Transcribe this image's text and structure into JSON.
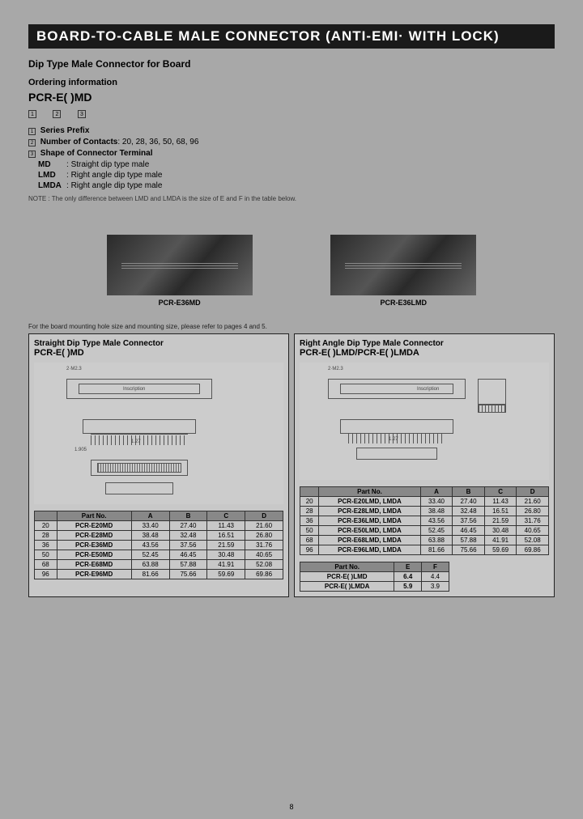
{
  "title": "BOARD-TO-CABLE MALE CONNECTOR (ANTI-EMI· WITH LOCK)",
  "subtitle": "Dip Type Male Connector for Board",
  "ordering_label": "Ordering information",
  "part_pattern": "PCR-E(  )MD",
  "box_labels": [
    "1",
    "2",
    "3"
  ],
  "ord1": {
    "label": "Series Prefix"
  },
  "ord2": {
    "label": "Number of Contacts",
    "values": "20, 28, 36, 50, 68, 96"
  },
  "ord3": {
    "label": "Shape of Connector Terminal"
  },
  "shapes": [
    {
      "code": "MD",
      "desc": "Straight dip type male"
    },
    {
      "code": "LMD",
      "desc": "Right angle dip type male"
    },
    {
      "code": "LMDA",
      "desc": "Right angle dip type male"
    }
  ],
  "note": "NOTE : The only difference between LMD and LMDA is the size of E and F in the table below.",
  "img1_caption": "PCR-E36MD",
  "img2_caption": "PCR-E36LMD",
  "ref_note": "For the board mounting hole size and mounting size, please refer to pages 4 and 5.",
  "panel1": {
    "title": "Straight Dip Type Male Connector",
    "subtitle": "PCR-E(  )MD"
  },
  "panel2": {
    "title": "Right Angle Dip Type Male Connector",
    "subtitle": "PCR-E(  )LMD/PCR-E(  )LMDA"
  },
  "table1": {
    "headers": [
      "",
      "Part No.",
      "A",
      "B",
      "C",
      "D"
    ],
    "rows": [
      [
        "20",
        "PCR-E20MD",
        "33.40",
        "27.40",
        "11.43",
        "21.60"
      ],
      [
        "28",
        "PCR-E28MD",
        "38.48",
        "32.48",
        "16.51",
        "26.80"
      ],
      [
        "36",
        "PCR-E36MD",
        "43.56",
        "37.56",
        "21.59",
        "31.76"
      ],
      [
        "50",
        "PCR-E50MD",
        "52.45",
        "46.45",
        "30.48",
        "40.65"
      ],
      [
        "68",
        "PCR-E68MD",
        "63.88",
        "57.88",
        "41.91",
        "52.08"
      ],
      [
        "96",
        "PCR-E96MD",
        "81.66",
        "75.66",
        "59.69",
        "69.86"
      ]
    ]
  },
  "table2": {
    "headers": [
      "",
      "Part No.",
      "A",
      "B",
      "C",
      "D"
    ],
    "rows": [
      [
        "20",
        "PCR-E20LMD, LMDA",
        "33.40",
        "27.40",
        "11.43",
        "21.60"
      ],
      [
        "28",
        "PCR-E28LMD, LMDA",
        "38.48",
        "32.48",
        "16.51",
        "26.80"
      ],
      [
        "36",
        "PCR-E36LMD, LMDA",
        "43.56",
        "37.56",
        "21.59",
        "31.76"
      ],
      [
        "50",
        "PCR-E50LMD, LMDA",
        "52.45",
        "46.45",
        "30.48",
        "40.65"
      ],
      [
        "68",
        "PCR-E68LMD, LMDA",
        "63.88",
        "57.88",
        "41.91",
        "52.08"
      ],
      [
        "96",
        "PCR-E96LMD, LMDA",
        "81.66",
        "75.66",
        "59.69",
        "69.86"
      ]
    ]
  },
  "table3": {
    "headers": [
      "Part No.",
      "E",
      "F"
    ],
    "rows": [
      [
        "PCR-E(  )LMD",
        "6.4",
        "4.4"
      ],
      [
        "PCR-E(  )LMDA",
        "5.9",
        "3.9"
      ]
    ]
  },
  "dims": {
    "pitch": "1.27",
    "pitch2": "1.27",
    "pin": "1.905",
    "insc": "Inscription",
    "thread": "2·M2.3"
  },
  "page_num": "8",
  "colors": {
    "bg": "#a8a8a8",
    "title_bg": "#1a1a1a",
    "panel_bg": "#c8c8c8",
    "header_bg": "#888"
  }
}
